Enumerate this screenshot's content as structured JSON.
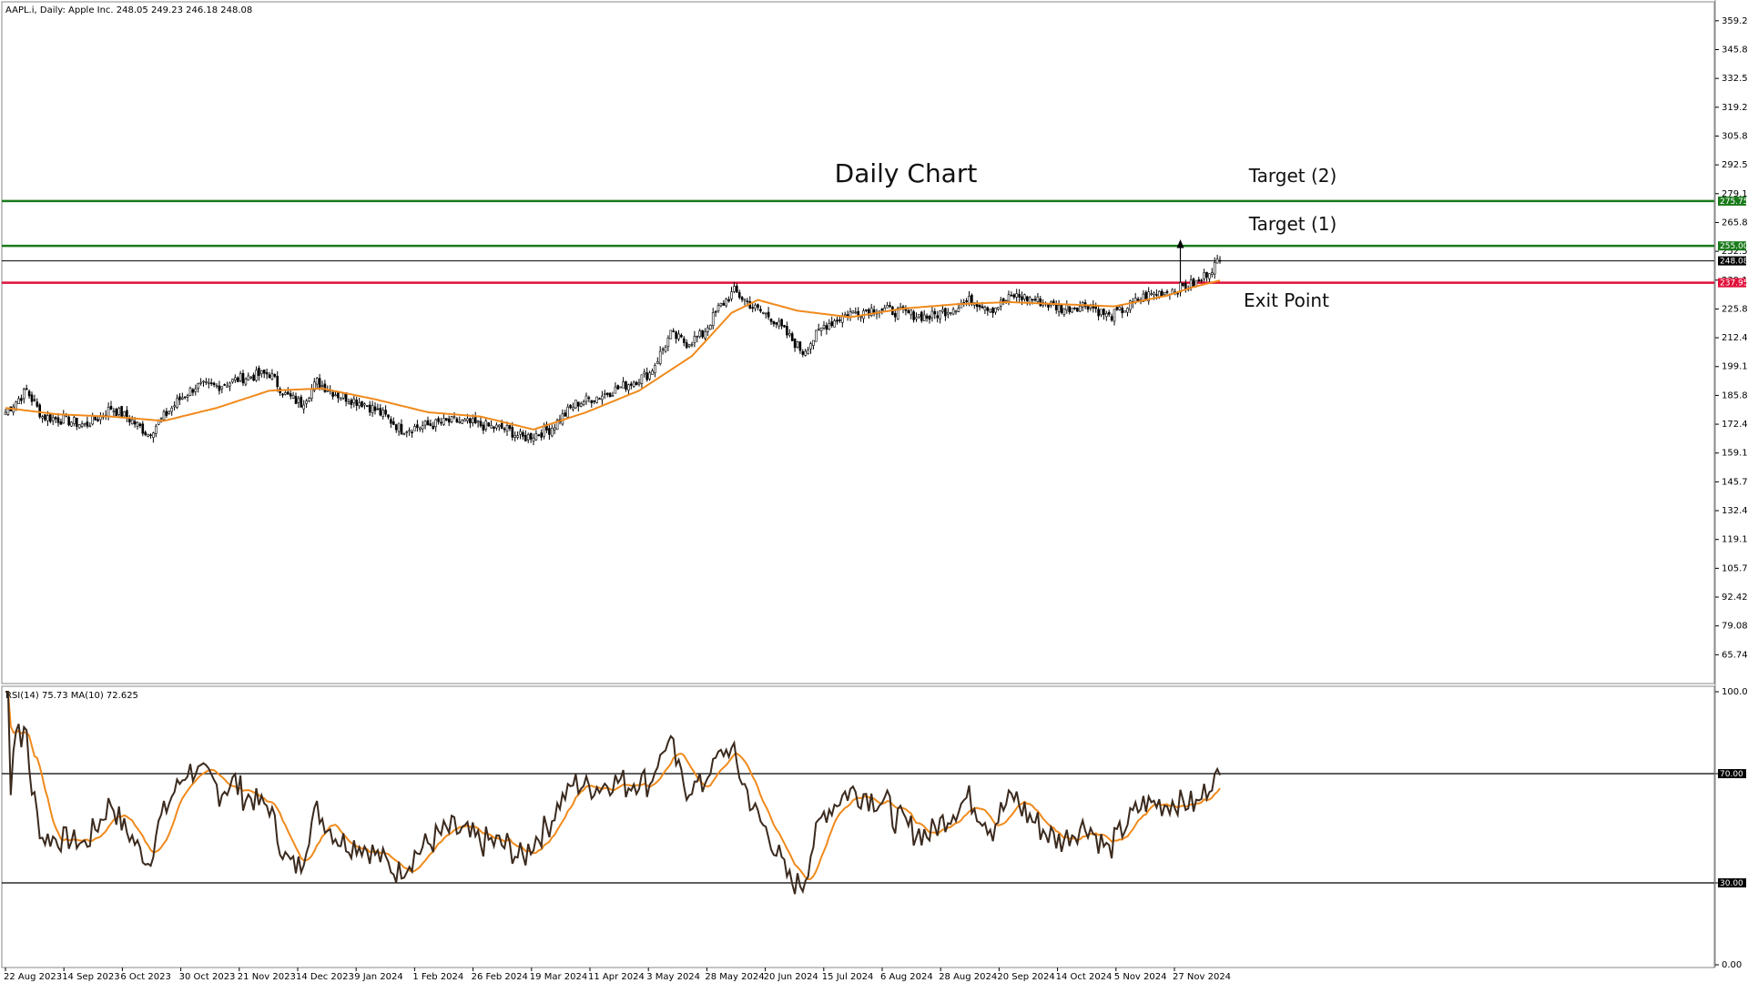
{
  "header": {
    "info": "AAPL.i, Daily:  Apple Inc.  248.05 249.23 246.18 248.08"
  },
  "annotations": {
    "title": "Daily Chart",
    "target2": "Target (2)",
    "target1": "Target (1)",
    "exit": "Exit Point"
  },
  "colors": {
    "price": "#000000",
    "ma": "#f08a1c",
    "rsi": "#3b2a1e",
    "target": "#1a7a1a",
    "exit": "#e0103a",
    "grid_line": "#000000"
  },
  "chart_data": [
    {
      "type": "candlestick",
      "title": "AAPL.i, Daily:  Apple Inc.  248.05 249.23 246.18 248.08",
      "ylim": [
        52.4,
        368
      ],
      "y_ticks": [
        "359.22",
        "345.88",
        "332.54",
        "319.20",
        "305.86",
        "292.52",
        "279.18",
        "265.84",
        "252.50",
        "239.16",
        "225.82",
        "212.48",
        "199.14",
        "185.80",
        "172.46",
        "159.12",
        "145.78",
        "132.44",
        "119.10",
        "105.76",
        "92.42",
        "79.08",
        "65.74"
      ],
      "x_ticks": [
        "22 Aug 2023",
        "14 Sep 2023",
        "6 Oct 2023",
        "30 Oct 2023",
        "21 Nov 2023",
        "14 Dec 2023",
        "9 Jan 2024",
        "1 Feb 2024",
        "26 Feb 2024",
        "19 Mar 2024",
        "11 Apr 2024",
        "3 May 2024",
        "28 May 2024",
        "20 Jun 2024",
        "15 Jul 2024",
        "6 Aug 2024",
        "28 Aug 2024",
        "20 Sep 2024",
        "14 Oct 2024",
        "5 Nov 2024",
        "27 Nov 2024"
      ],
      "levels": [
        {
          "label": "275.75",
          "value": 275.75,
          "color": "#1a7a1a"
        },
        {
          "label": "255.00",
          "value": 255.0,
          "color": "#1a7a1a"
        },
        {
          "label": "248.08",
          "value": 248.08,
          "color": "#000000"
        },
        {
          "label": "237.95",
          "value": 237.95,
          "color": "#e0103a"
        }
      ],
      "close_anchors": [
        [
          0,
          178
        ],
        [
          8,
          188
        ],
        [
          14,
          176
        ],
        [
          24,
          174
        ],
        [
          30,
          172
        ],
        [
          36,
          176
        ],
        [
          40,
          180
        ],
        [
          48,
          174
        ],
        [
          54,
          168
        ],
        [
          60,
          176
        ],
        [
          66,
          184
        ],
        [
          72,
          190
        ],
        [
          80,
          190
        ],
        [
          90,
          194
        ],
        [
          100,
          196
        ],
        [
          106,
          186
        ],
        [
          112,
          182
        ],
        [
          118,
          192
        ],
        [
          126,
          186
        ],
        [
          136,
          182
        ],
        [
          144,
          176
        ],
        [
          150,
          170
        ],
        [
          160,
          172
        ],
        [
          170,
          174
        ],
        [
          180,
          172
        ],
        [
          190,
          170
        ],
        [
          196,
          166
        ],
        [
          206,
          170
        ],
        [
          216,
          182
        ],
        [
          226,
          186
        ],
        [
          234,
          190
        ],
        [
          244,
          196
        ],
        [
          252,
          214
        ],
        [
          258,
          210
        ],
        [
          264,
          214
        ],
        [
          270,
          226
        ],
        [
          276,
          234
        ],
        [
          280,
          230
        ],
        [
          284,
          226
        ],
        [
          290,
          222
        ],
        [
          296,
          214
        ],
        [
          302,
          206
        ],
        [
          310,
          218
        ],
        [
          320,
          224
        ],
        [
          330,
          226
        ],
        [
          340,
          224
        ],
        [
          350,
          222
        ],
        [
          358,
          226
        ],
        [
          366,
          230
        ],
        [
          374,
          226
        ],
        [
          382,
          232
        ],
        [
          390,
          230
        ],
        [
          400,
          226
        ],
        [
          410,
          228
        ],
        [
          418,
          222
        ],
        [
          424,
          226
        ],
        [
          432,
          232
        ],
        [
          440,
          234
        ],
        [
          446,
          236
        ],
        [
          452,
          238
        ],
        [
          456,
          244
        ],
        [
          460,
          248.08
        ]
      ],
      "ma_anchors": [
        [
          0,
          180
        ],
        [
          20,
          177
        ],
        [
          40,
          176
        ],
        [
          60,
          174
        ],
        [
          80,
          180
        ],
        [
          100,
          188
        ],
        [
          120,
          189
        ],
        [
          140,
          184
        ],
        [
          160,
          178
        ],
        [
          180,
          176
        ],
        [
          200,
          170
        ],
        [
          220,
          178
        ],
        [
          240,
          188
        ],
        [
          260,
          204
        ],
        [
          275,
          224
        ],
        [
          285,
          230
        ],
        [
          300,
          225
        ],
        [
          320,
          222
        ],
        [
          340,
          226
        ],
        [
          360,
          228
        ],
        [
          380,
          229
        ],
        [
          400,
          228
        ],
        [
          420,
          227
        ],
        [
          440,
          232
        ],
        [
          450,
          236
        ],
        [
          460,
          239
        ]
      ],
      "n_bars": 461
    },
    {
      "type": "line",
      "title": "RSI(14) 75.73 MA(10) 72.625",
      "ylim": [
        0,
        100
      ],
      "y_ticks": [
        "100.00",
        "70.00",
        "30.00",
        "0.00"
      ],
      "levels": [
        {
          "label": "70.00",
          "value": 70
        },
        {
          "label": "30.00",
          "value": 30
        }
      ],
      "series": [
        {
          "name": "RSI(14)",
          "last": 75.73
        },
        {
          "name": "MA(10)",
          "last": 72.625
        }
      ]
    }
  ],
  "axis_labels": {
    "price": [
      "359.22",
      "345.88",
      "332.54",
      "319.20",
      "305.86",
      "292.52",
      "279.18",
      "265.84",
      "252.50",
      "239.16",
      "225.82",
      "212.48",
      "199.14",
      "185.80",
      "172.46",
      "159.12",
      "145.78",
      "132.44",
      "119.10",
      "105.76",
      "92.42",
      "79.08",
      "65.74"
    ],
    "rsi": [
      "100.00",
      "70.00",
      "30.00",
      "0.00"
    ],
    "dates": [
      "22 Aug 2023",
      "14 Sep 2023",
      "6 Oct 2023",
      "30 Oct 2023",
      "21 Nov 2023",
      "14 Dec 2023",
      "9 Jan 2024",
      "1 Feb 2024",
      "26 Feb 2024",
      "19 Mar 2024",
      "11 Apr 2024",
      "3 May 2024",
      "28 May 2024",
      "20 Jun 2024",
      "15 Jul 2024",
      "6 Aug 2024",
      "28 Aug 2024",
      "20 Sep 2024",
      "14 Oct 2024",
      "5 Nov 2024",
      "27 Nov 2024"
    ]
  },
  "rsi_panel": {
    "label": "RSI(14) 75.73 MA(10) 72.625"
  }
}
